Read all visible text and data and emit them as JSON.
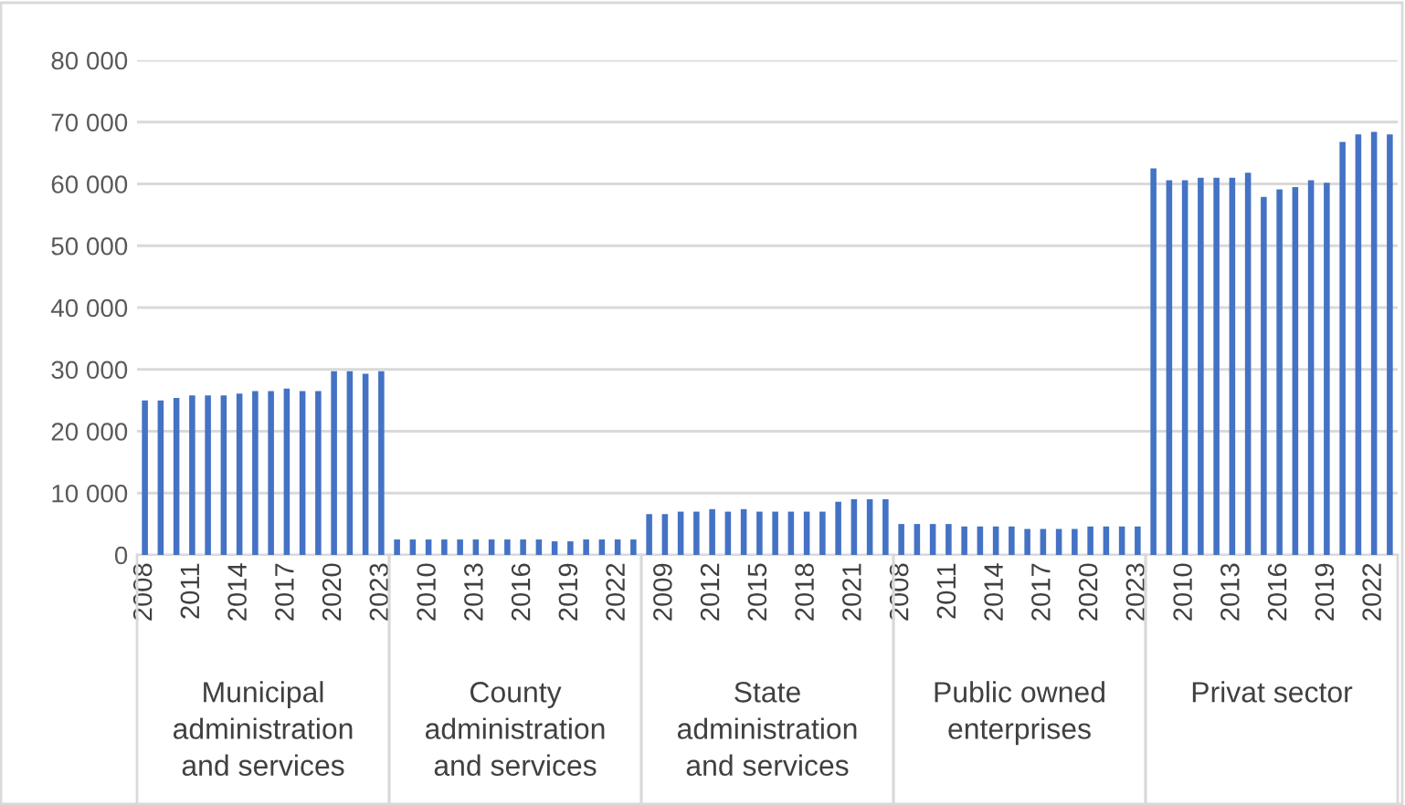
{
  "chart_data": {
    "type": "bar",
    "categories": [
      "2008",
      null,
      null,
      "2011",
      null,
      null,
      "2014",
      null,
      null,
      "2017",
      null,
      null,
      "2020",
      null,
      null,
      "2023",
      null,
      null,
      "2010",
      null,
      null,
      "2013",
      null,
      null,
      "2016",
      null,
      null,
      "2019",
      null,
      null,
      "2022",
      null,
      null,
      "2009",
      null,
      null,
      "2012",
      null,
      null,
      "2015",
      null,
      null,
      "2018",
      null,
      null,
      "2021",
      null,
      null,
      "2008",
      null,
      null,
      "2011",
      null,
      null,
      "2014",
      null,
      null,
      "2017",
      null,
      null,
      "2020",
      null,
      null,
      "2023",
      null,
      null,
      "2010",
      null,
      null,
      "2013",
      null,
      null,
      "2016",
      null,
      null,
      "2019",
      null,
      null,
      "2022",
      null
    ],
    "values": [
      25000,
      25000,
      25400,
      25800,
      25800,
      25800,
      26100,
      26500,
      26500,
      26900,
      26500,
      26500,
      29700,
      29700,
      29300,
      29700,
      2500,
      2500,
      2500,
      2500,
      2500,
      2500,
      2500,
      2500,
      2500,
      2500,
      2200,
      2200,
      2500,
      2500,
      2500,
      2500,
      6600,
      6600,
      7000,
      7000,
      7400,
      7000,
      7400,
      7000,
      7000,
      7000,
      7000,
      7000,
      8600,
      9000,
      9000,
      9000,
      5000,
      5000,
      5000,
      5000,
      4600,
      4600,
      4600,
      4600,
      4200,
      4200,
      4200,
      4200,
      4600,
      4600,
      4600,
      4600,
      62500,
      60600,
      60600,
      61000,
      61000,
      61000,
      61800,
      57900,
      59100,
      59500,
      60600,
      60200,
      66800,
      68000,
      68400,
      68000
    ],
    "color": "#4472c4",
    "ylim": [
      0,
      80000
    ],
    "yticks": [
      0,
      {
        "value": 10000,
        "label": "10 000"
      },
      {
        "value": 20000,
        "label": "20 000"
      },
      {
        "value": 30000,
        "label": "30 000"
      },
      {
        "value": 40000,
        "label": "40 000"
      },
      {
        "value": 50000,
        "label": "50 000"
      },
      {
        "value": 60000,
        "label": "60 000"
      },
      {
        "value": 70000,
        "label": "70 000"
      },
      {
        "value": 80000,
        "label": "80 000"
      }
    ],
    "grid": "y",
    "annotations": [
      "Municipal\nadministration\nand services",
      "County\nadministration\nand services",
      "State\nadministration\nand services",
      "Public owned\nenterprises",
      "Privat sector"
    ]
  }
}
